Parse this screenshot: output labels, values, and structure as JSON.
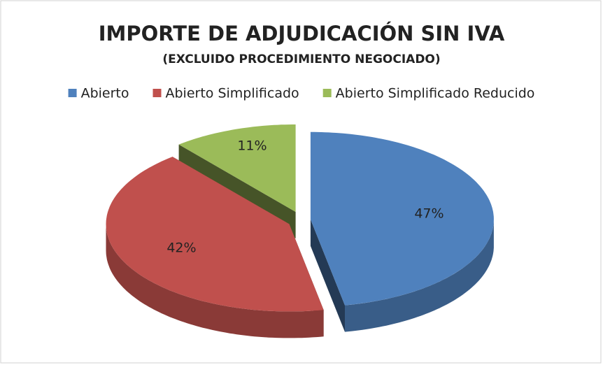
{
  "chart_data": {
    "type": "pie3d",
    "title": "IMPORTE DE ADJUDICACIÓN SIN IVA",
    "subtitle": "(EXCLUIDO PROCEDIMIENTO NEGOCIADO)",
    "categories": [
      "Abierto",
      "Abierto Simplificado",
      "Abierto Simplificado Reducido"
    ],
    "values": [
      47,
      42,
      11
    ],
    "value_labels": [
      "47%",
      "42%",
      "11%"
    ],
    "colors": [
      "#4f81bd",
      "#c0504d",
      "#9bbb59"
    ],
    "legend": "top"
  }
}
